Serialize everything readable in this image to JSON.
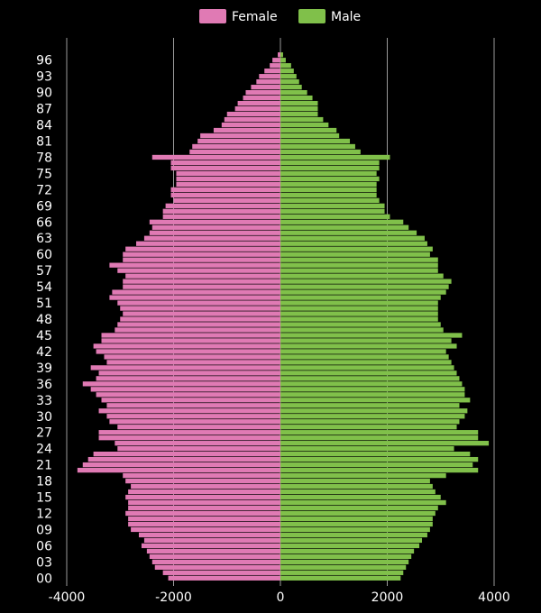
{
  "chart_data": {
    "type": "bar",
    "orientation": "horizontal",
    "subtype": "population-pyramid",
    "y_ticks": [
      "00",
      "03",
      "06",
      "09",
      "12",
      "15",
      "18",
      "21",
      "24",
      "27",
      "30",
      "33",
      "36",
      "39",
      "42",
      "45",
      "48",
      "51",
      "54",
      "57",
      "60",
      "63",
      "66",
      "69",
      "72",
      "75",
      "78",
      "81",
      "84",
      "87",
      "90",
      "93",
      "96"
    ],
    "x_ticks": [
      -4000,
      -2000,
      0,
      2000,
      4000
    ],
    "xlim": [
      -4250,
      4250
    ],
    "ages": [
      0,
      1,
      2,
      3,
      4,
      5,
      6,
      7,
      8,
      9,
      10,
      11,
      12,
      13,
      14,
      15,
      16,
      17,
      18,
      19,
      20,
      21,
      22,
      23,
      24,
      25,
      26,
      27,
      28,
      29,
      30,
      31,
      32,
      33,
      34,
      35,
      36,
      37,
      38,
      39,
      40,
      41,
      42,
      43,
      44,
      45,
      46,
      47,
      48,
      49,
      50,
      51,
      52,
      53,
      54,
      55,
      56,
      57,
      58,
      59,
      60,
      61,
      62,
      63,
      64,
      65,
      66,
      67,
      68,
      69,
      70,
      71,
      72,
      73,
      74,
      75,
      76,
      77,
      78,
      79,
      80,
      81,
      82,
      83,
      84,
      85,
      86,
      87,
      88,
      89,
      90,
      91,
      92,
      93,
      94,
      95,
      96,
      97
    ],
    "series": [
      {
        "name": "Female",
        "color": "#e07ab4",
        "values": [
          -2100,
          -2200,
          -2350,
          -2400,
          -2450,
          -2500,
          -2600,
          -2550,
          -2650,
          -2800,
          -2850,
          -2850,
          -2900,
          -2850,
          -2850,
          -2900,
          -2850,
          -2800,
          -2900,
          -2950,
          -3800,
          -3700,
          -3600,
          -3500,
          -3050,
          -3100,
          -3400,
          -3400,
          -3050,
          -3200,
          -3250,
          -3400,
          -3250,
          -3350,
          -3450,
          -3550,
          -3700,
          -3450,
          -3400,
          -3550,
          -3250,
          -3300,
          -3450,
          -3500,
          -3350,
          -3350,
          -3100,
          -3050,
          -3000,
          -2950,
          -3000,
          -3050,
          -3200,
          -3150,
          -2950,
          -2950,
          -2900,
          -3050,
          -3200,
          -2950,
          -2950,
          -2900,
          -2700,
          -2550,
          -2450,
          -2400,
          -2450,
          -2200,
          -2200,
          -2150,
          -2000,
          -2050,
          -2050,
          -1950,
          -1950,
          -1950,
          -2050,
          -2050,
          -2400,
          -1700,
          -1650,
          -1550,
          -1500,
          -1250,
          -1100,
          -1050,
          -1000,
          -850,
          -800,
          -700,
          -650,
          -550,
          -450,
          -400,
          -300,
          -200,
          -150,
          -50
        ]
      },
      {
        "name": "Male",
        "color": "#80c04a",
        "values": [
          2250,
          2300,
          2350,
          2400,
          2450,
          2500,
          2600,
          2650,
          2750,
          2800,
          2850,
          2850,
          2900,
          2950,
          3100,
          3000,
          2900,
          2850,
          2800,
          3100,
          3700,
          3600,
          3700,
          3550,
          3250,
          3900,
          3700,
          3700,
          3300,
          3350,
          3450,
          3500,
          3350,
          3550,
          3450,
          3450,
          3400,
          3350,
          3300,
          3250,
          3200,
          3150,
          3100,
          3300,
          3200,
          3400,
          3050,
          3000,
          2950,
          2950,
          2950,
          2950,
          3000,
          3100,
          3150,
          3200,
          3050,
          2950,
          2950,
          2950,
          2800,
          2850,
          2750,
          2700,
          2550,
          2400,
          2300,
          2050,
          1950,
          1950,
          1850,
          1800,
          1800,
          1800,
          1850,
          1800,
          1850,
          1850,
          2050,
          1500,
          1400,
          1300,
          1100,
          1050,
          900,
          800,
          700,
          700,
          700,
          600,
          500,
          400,
          350,
          300,
          250,
          200,
          100,
          50
        ]
      }
    ],
    "legend": {
      "placement": "top-center",
      "entries": [
        "Female",
        "Male"
      ]
    },
    "grid": true
  }
}
